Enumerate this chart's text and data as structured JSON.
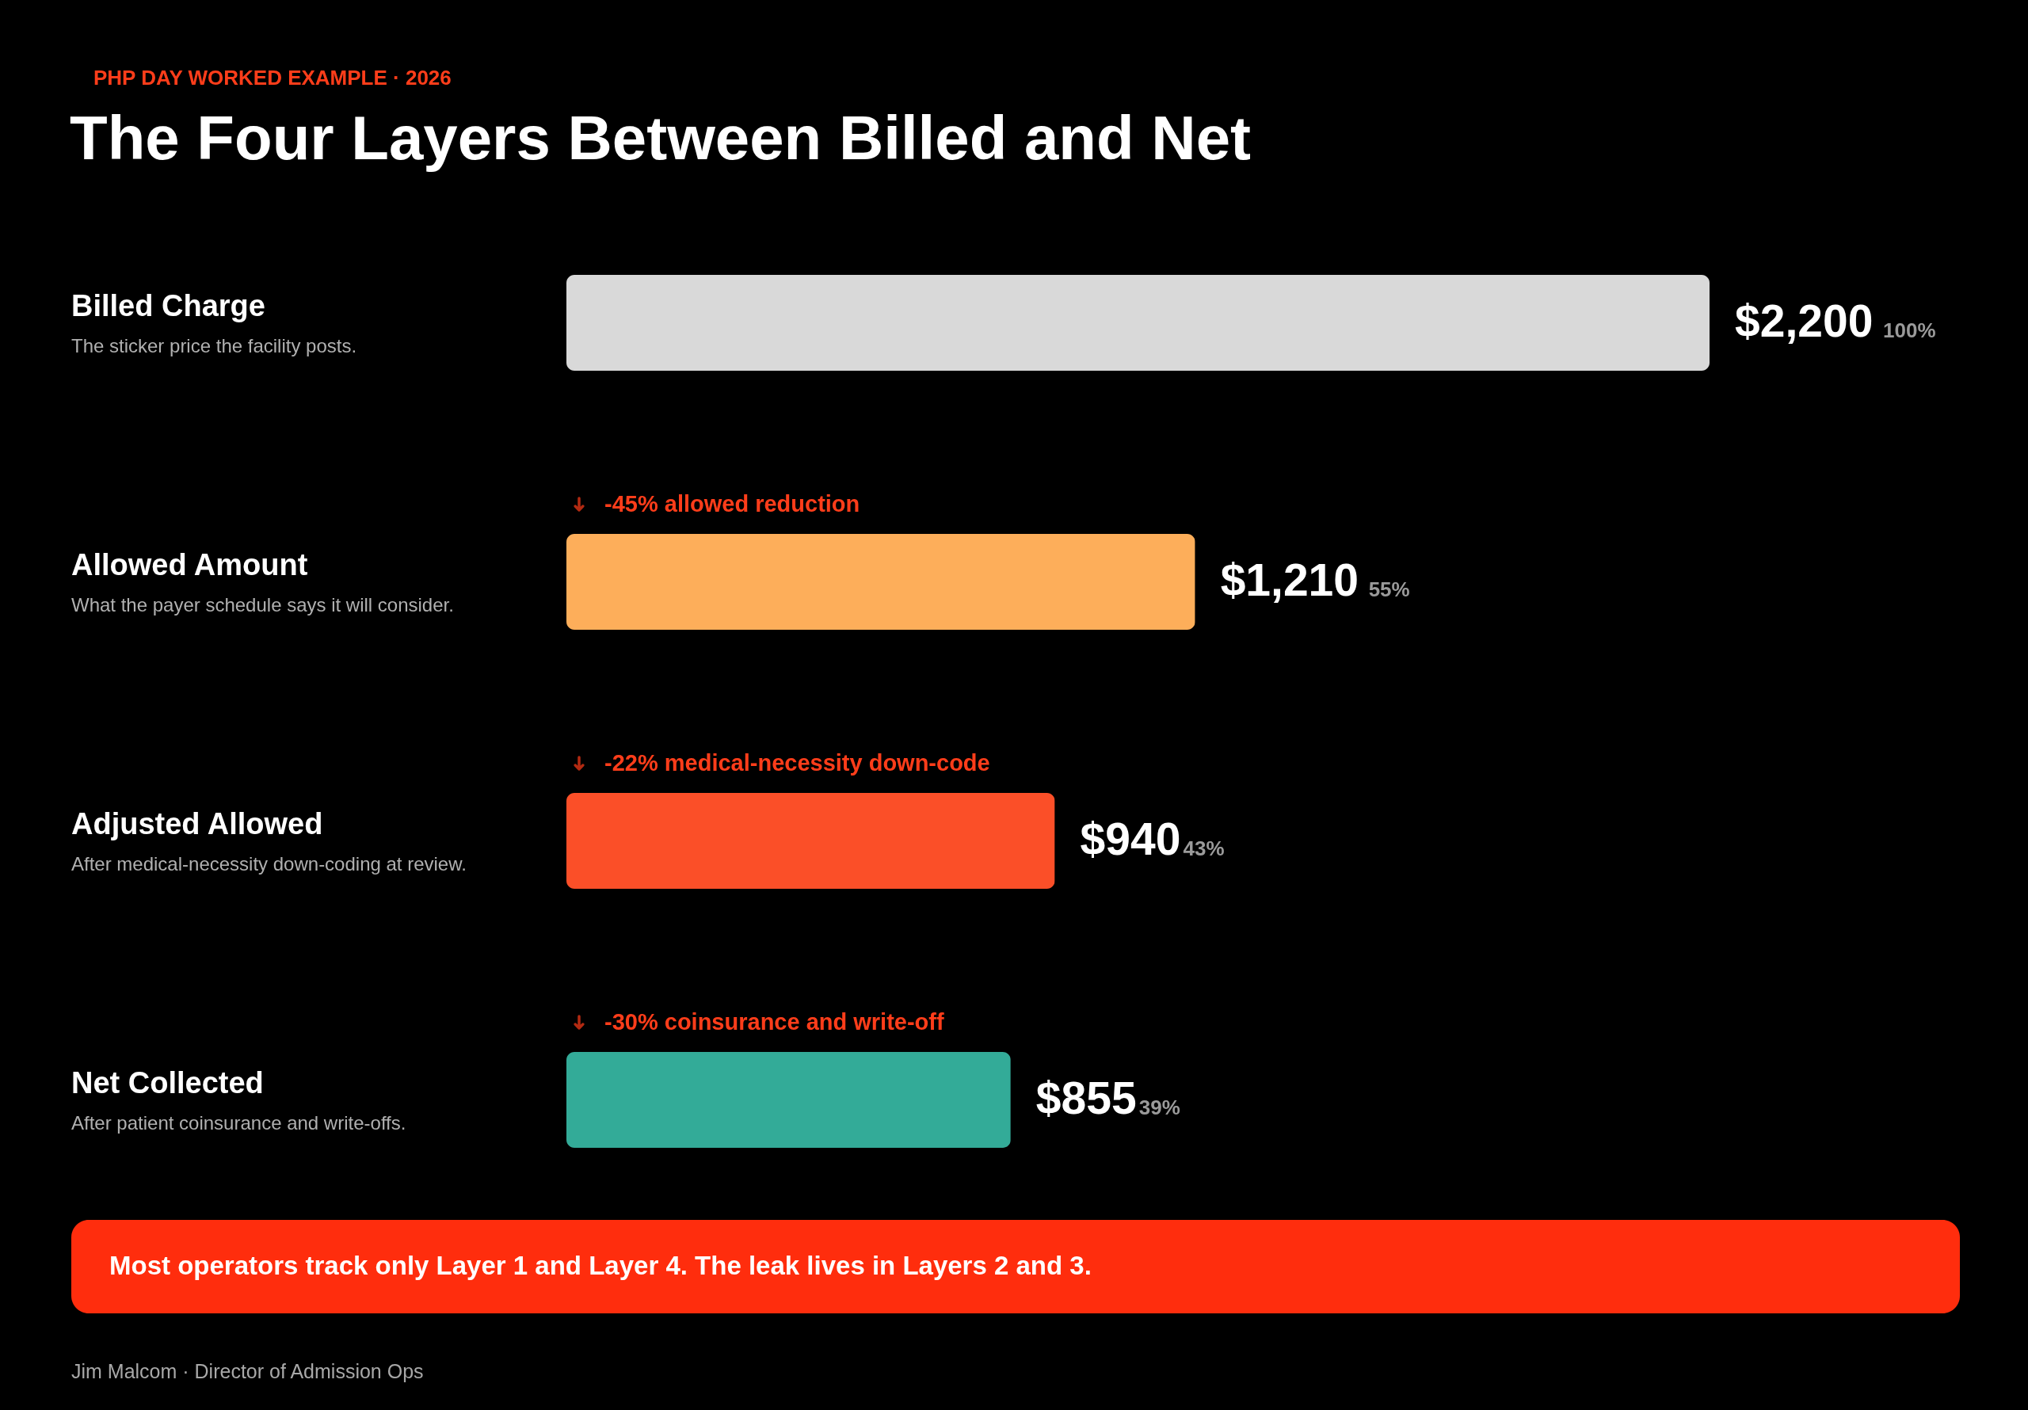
{
  "chart_data": {
    "type": "bar",
    "orientation": "horizontal",
    "subtitle": "PHP DAY WORKED EXAMPLE · 2026",
    "title": "The Four Layers Between Billed and Net",
    "categories": [
      "Billed Charge",
      "Allowed Amount",
      "Adjusted Allowed",
      "Net Collected"
    ],
    "values": [
      2200,
      1210,
      940,
      855
    ],
    "colors": [
      "#d9d9d9",
      "#fdae5a",
      "#fb4f28",
      "#33ab98"
    ],
    "value_labels": [
      "$2,200",
      "$1,210",
      "$940",
      "$855"
    ],
    "annotations": [
      "100%",
      "55%",
      "43%",
      "39%",
      "The sticker price the facility posts.",
      "What the payer schedule says it will consider.",
      "After medical-necessity down-coding at review.",
      "After patient coinsurance and write-offs.",
      "-45% allowed reduction",
      "-22% medical-necessity down-code",
      "-30% coinsurance and write-off",
      "Most operators track only Layer 1 and Layer 4. The leak lives in Layers 2 and 3.",
      "Jim Malcom · Director of Admission Ops"
    ]
  }
}
